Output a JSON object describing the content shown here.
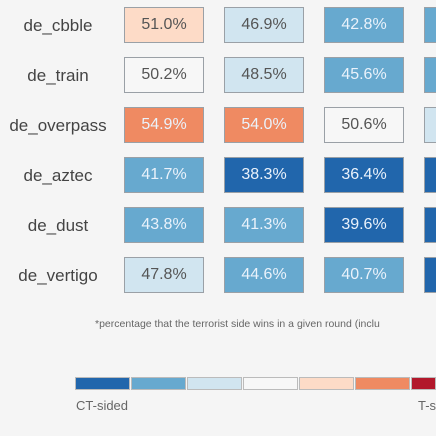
{
  "chart_data": {
    "type": "heatmap",
    "rows": [
      "de_cbble",
      "de_train",
      "de_overpass",
      "de_aztec",
      "de_dust",
      "de_vertigo"
    ],
    "columns_visible": 3,
    "values": [
      [
        "51.0%",
        "46.9%",
        "42.8%"
      ],
      [
        "50.2%",
        "48.5%",
        "45.6%"
      ],
      [
        "54.9%",
        "54.0%",
        "50.6%"
      ],
      [
        "41.7%",
        "38.3%",
        "36.4%"
      ],
      [
        "43.8%",
        "41.3%",
        "39.6%"
      ],
      [
        "47.8%",
        "44.6%",
        "40.7%"
      ]
    ],
    "cell_colors": [
      [
        "#fddbc7",
        "#d1e5f0",
        "#67a9cf",
        "#67a9cf"
      ],
      [
        "#f7f7f7",
        "#d1e5f0",
        "#67a9cf",
        "#67a9cf"
      ],
      [
        "#ef8a62",
        "#ef8a62",
        "#f7f7f7",
        "#d1e5f0"
      ],
      [
        "#67a9cf",
        "#2166ac",
        "#2166ac",
        "#2166ac"
      ],
      [
        "#67a9cf",
        "#67a9cf",
        "#2166ac",
        "#2166ac"
      ],
      [
        "#d1e5f0",
        "#67a9cf",
        "#67a9cf",
        "#2166ac"
      ]
    ],
    "footnote": "*percentage that the terrorist side wins in a given round (inclu",
    "colorbar": {
      "colors": [
        "#2166ac",
        "#67a9cf",
        "#d1e5f0",
        "#f7f7f7",
        "#fddbc7",
        "#ef8a62",
        "#b2182b"
      ],
      "left_label": "CT-sided",
      "right_label": "T-s"
    }
  }
}
